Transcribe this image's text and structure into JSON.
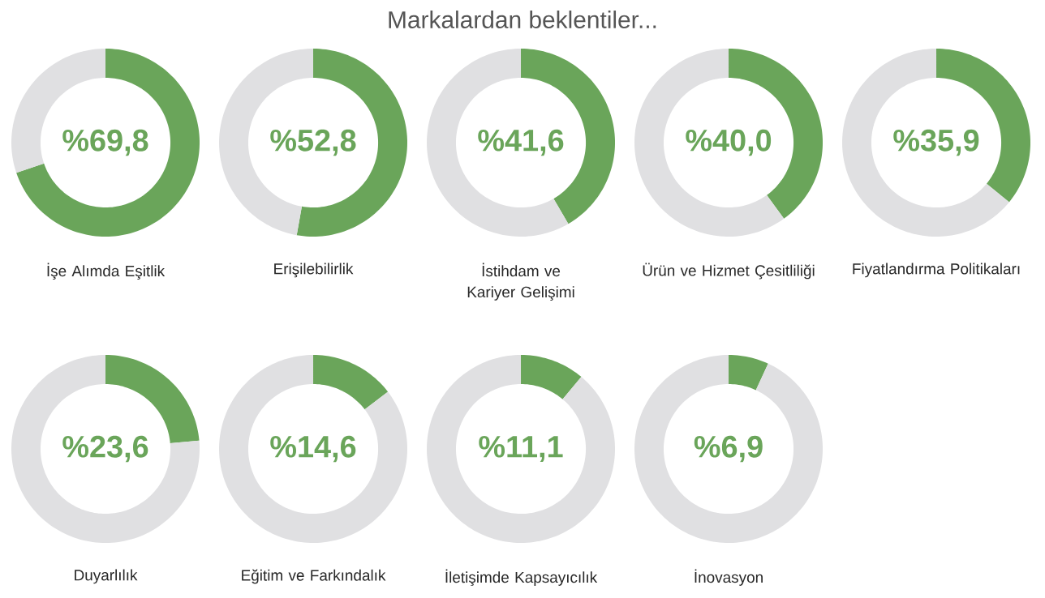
{
  "chart_data": [
    {
      "type": "donut",
      "xlabel": "İşe Alımda Eşitlik",
      "categories": [
        null,
        null
      ],
      "values": [
        69.8,
        30.2
      ],
      "colors": [
        "#6aa55a",
        "#e0e0e2"
      ],
      "annotations": [
        "%69,8"
      ]
    },
    {
      "type": "donut",
      "xlabel": "Erişilebilirlik",
      "categories": [
        null,
        null
      ],
      "values": [
        52.8,
        47.2
      ],
      "colors": [
        "#6aa55a",
        "#e0e0e2"
      ],
      "annotations": [
        "%52,8"
      ]
    },
    {
      "type": "donut",
      "title": "Markalardan beklentiler...",
      "xlabel": "İstihdam ve Kariyer Gelişimi",
      "categories": [
        null,
        null
      ],
      "values": [
        41.6,
        58.4
      ],
      "colors": [
        "#6aa55a",
        "#e0e0e2"
      ],
      "annotations": [
        "%41,6"
      ]
    },
    {
      "type": "donut",
      "xlabel": "Ürün ve Hizmet Çesitliliği",
      "categories": [
        null,
        null
      ],
      "values": [
        40.0,
        60.0
      ],
      "colors": [
        "#6aa55a",
        "#e0e0e2"
      ],
      "annotations": [
        "%40,0"
      ]
    },
    {
      "type": "donut",
      "xlabel": "Fiyatlandırma Politikaları",
      "categories": [
        null,
        null
      ],
      "values": [
        35.9,
        64.1
      ],
      "colors": [
        "#6aa55a",
        "#e0e0e2"
      ],
      "annotations": [
        "%35,9"
      ]
    },
    {
      "type": "donut",
      "xlabel": "Duyarlılık",
      "categories": [
        null,
        null
      ],
      "values": [
        23.6,
        76.4
      ],
      "colors": [
        "#6aa55a",
        "#e0e0e2"
      ],
      "annotations": [
        "%23,6"
      ]
    },
    {
      "type": "donut",
      "xlabel": "Eğitim ve Farkındalık",
      "categories": [
        null,
        null
      ],
      "values": [
        14.6,
        85.4
      ],
      "colors": [
        "#6aa55a",
        "#e0e0e2"
      ],
      "annotations": [
        "%14,6"
      ]
    },
    {
      "type": "donut",
      "xlabel": "İletişimde Kapsayıcılık",
      "categories": [
        null,
        null
      ],
      "values": [
        11.1,
        88.9
      ],
      "colors": [
        "#6aa55a",
        "#e0e0e2"
      ],
      "annotations": [
        "%11,1"
      ]
    },
    {
      "type": "donut",
      "xlabel": "İnovasyon",
      "categories": [
        null,
        null
      ],
      "values": [
        6.9,
        93.1
      ],
      "colors": [
        "#6aa55a",
        "#e0e0e2"
      ],
      "annotations": [
        "%6,9"
      ]
    }
  ]
}
